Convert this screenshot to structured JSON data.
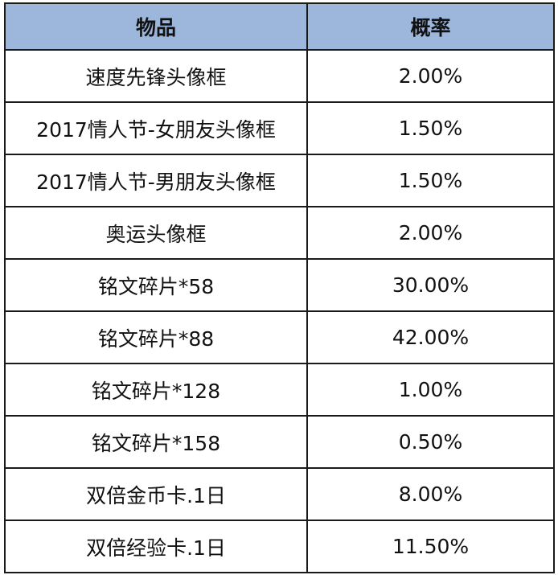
{
  "header": {
    "item": "物品",
    "probability": "概率"
  },
  "rows": [
    {
      "item": "速度先锋头像框",
      "probability": "2.00%"
    },
    {
      "item": "2017情人节-女朋友头像框",
      "probability": "1.50%"
    },
    {
      "item": "2017情人节-男朋友头像框",
      "probability": "1.50%"
    },
    {
      "item": "奥运头像框",
      "probability": "2.00%"
    },
    {
      "item": "铭文碎片*58",
      "probability": "30.00%"
    },
    {
      "item": "铭文碎片*88",
      "probability": "42.00%"
    },
    {
      "item": "铭文碎片*128",
      "probability": "1.00%"
    },
    {
      "item": "铭文碎片*158",
      "probability": "0.50%"
    },
    {
      "item": "双倍金币卡.1日",
      "probability": "8.00%"
    },
    {
      "item": "双倍经验卡.1日",
      "probability": "11.50%"
    }
  ],
  "colors": {
    "header_bg": "#9db6dc",
    "border": "#1a1a1a"
  }
}
